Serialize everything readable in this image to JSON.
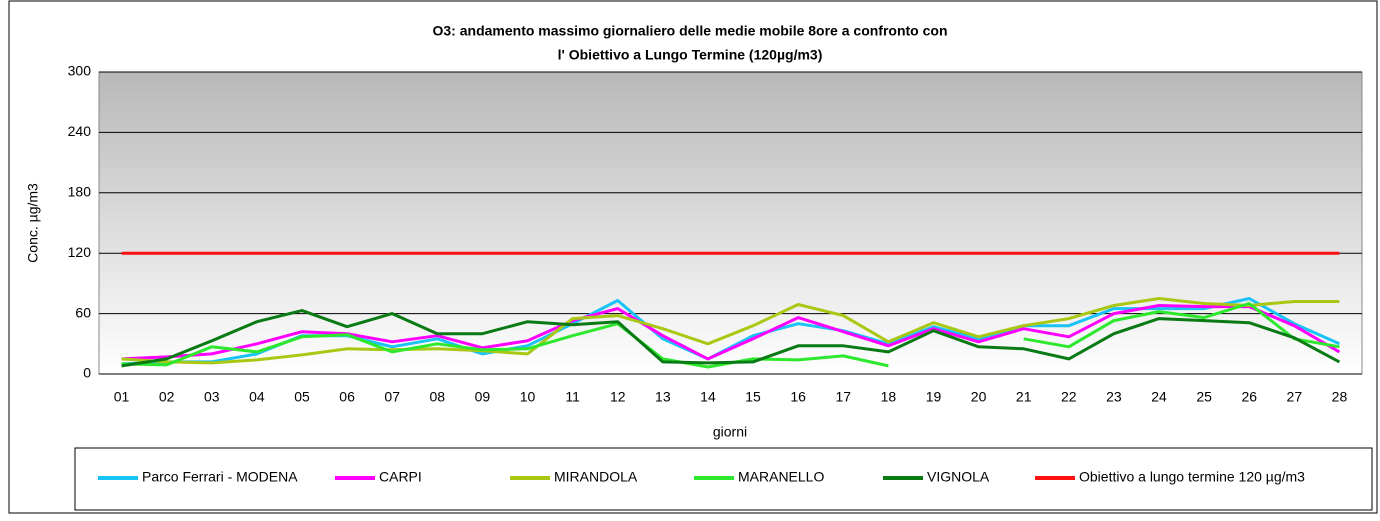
{
  "chart_data": {
    "type": "line",
    "title": [
      "O3: andamento massimo giornaliero delle medie mobile 8ore a confronto con",
      "l' Obiettivo a Lungo Termine  (120µg/m3)"
    ],
    "x_label": "giorni",
    "y_label": "Conc. µg/m3",
    "categories": [
      "01",
      "02",
      "03",
      "04",
      "05",
      "06",
      "07",
      "08",
      "09",
      "10",
      "11",
      "12",
      "13",
      "14",
      "15",
      "16",
      "17",
      "18",
      "19",
      "20",
      "21",
      "22",
      "23",
      "24",
      "25",
      "26",
      "27",
      "28"
    ],
    "ylim": [
      0,
      300
    ],
    "yticks": [
      0,
      60,
      120,
      180,
      240,
      300
    ],
    "grid": true,
    "legend": "bottom",
    "series": [
      {
        "name": "Parco Ferrari - MODENA",
        "color": "#19c3f5",
        "values": [
          10,
          12,
          12,
          20,
          38,
          38,
          27,
          35,
          20,
          28,
          50,
          73,
          35,
          15,
          38,
          50,
          43,
          30,
          47,
          35,
          48,
          48,
          65,
          65,
          65,
          75,
          50,
          30
        ]
      },
      {
        "name": "CARPI",
        "color": "#ff00ff",
        "values": [
          15,
          17,
          20,
          30,
          42,
          40,
          32,
          38,
          26,
          33,
          53,
          65,
          38,
          15,
          35,
          56,
          42,
          28,
          45,
          32,
          45,
          37,
          60,
          68,
          67,
          67,
          48,
          22
        ]
      },
      {
        "name": "MIRANDOLA",
        "color": "#a9c814",
        "values": [
          15,
          12,
          11,
          14,
          19,
          25,
          24,
          25,
          23,
          20,
          55,
          58,
          45,
          30,
          48,
          69,
          58,
          32,
          51,
          37,
          48,
          55,
          68,
          75,
          70,
          68,
          72,
          72
        ]
      },
      {
        "name": "MARANELLO",
        "color": "#2ee82e",
        "values": [
          10,
          9,
          27,
          22,
          37,
          39,
          22,
          30,
          24,
          25,
          38,
          50,
          15,
          7,
          15,
          14,
          18,
          8,
          null,
          null,
          35,
          27,
          53,
          62,
          56,
          70,
          35,
          27
        ]
      },
      {
        "name": "VIGNOLA",
        "color": "#0a7a14",
        "values": [
          8,
          15,
          33,
          52,
          63,
          47,
          60,
          40,
          40,
          52,
          49,
          52,
          12,
          11,
          12,
          28,
          28,
          22,
          43,
          27,
          25,
          15,
          40,
          55,
          53,
          51,
          36,
          12
        ]
      },
      {
        "name": "Obiettivo  a lungo termine 120 µg/m3",
        "color": "#ff1010",
        "values": [
          120,
          120,
          120,
          120,
          120,
          120,
          120,
          120,
          120,
          120,
          120,
          120,
          120,
          120,
          120,
          120,
          120,
          120,
          120,
          120,
          120,
          120,
          120,
          120,
          120,
          120,
          120,
          120
        ]
      }
    ]
  }
}
